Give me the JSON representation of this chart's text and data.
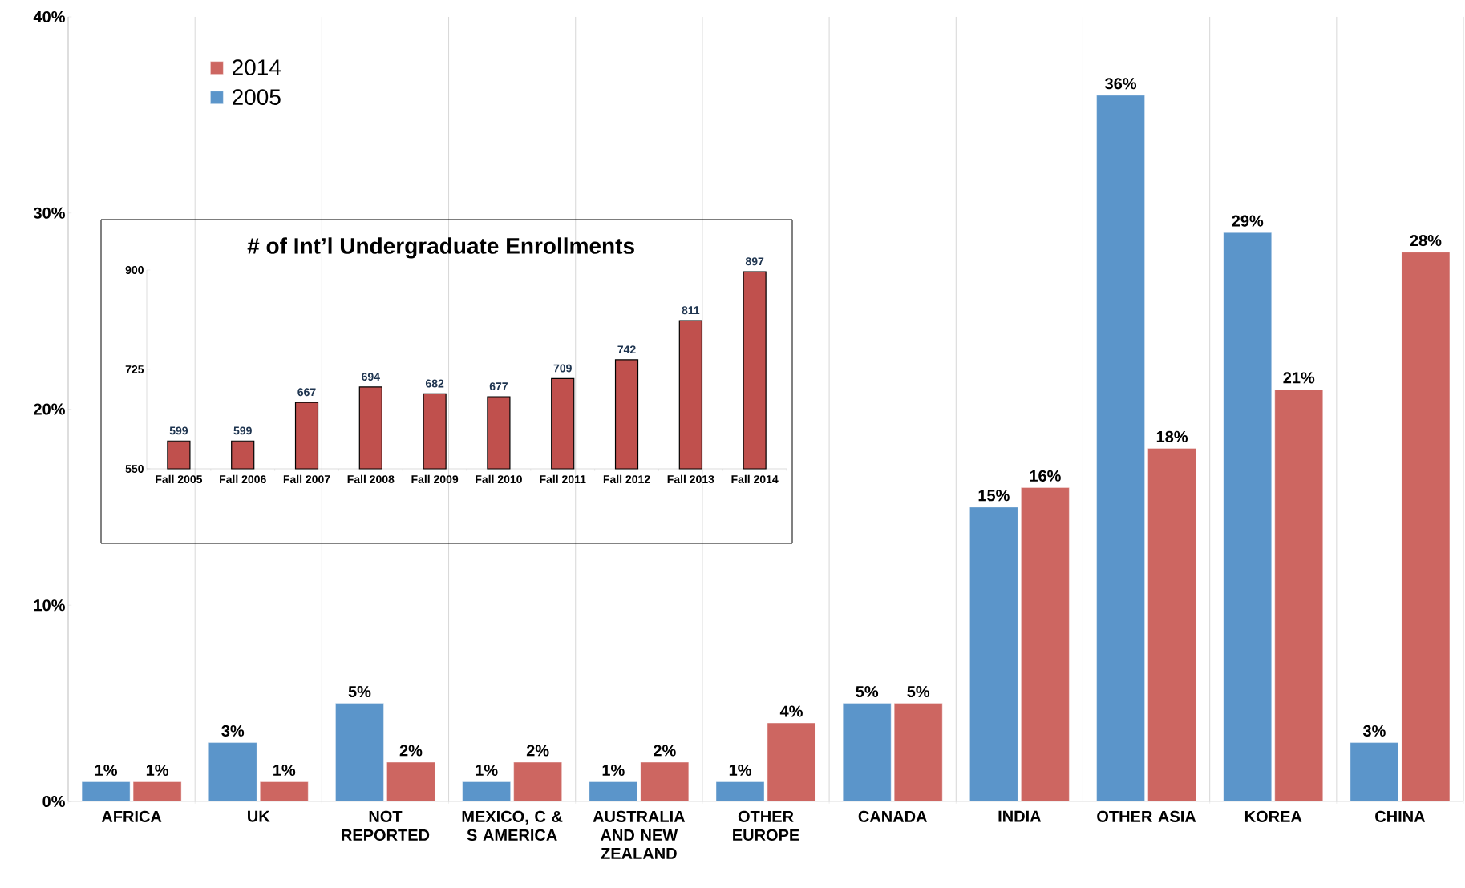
{
  "chart_data": [
    {
      "type": "bar",
      "categories": [
        "AFRICA",
        "UK",
        "NOT REPORTED",
        "MEXICO, C & S AMERICA",
        "AUSTRALIA AND NEW ZEALAND",
        "OTHER EUROPE",
        "CANADA",
        "INDIA",
        "OTHER ASIA",
        "KOREA",
        "CHINA"
      ],
      "series": [
        {
          "name": "2005",
          "color": "#5b95ca",
          "values": [
            1,
            3,
            5,
            1,
            1,
            1,
            5,
            15,
            36,
            29,
            3
          ],
          "value_labels": [
            "1%",
            "3%",
            "5%",
            "1%",
            "1%",
            "1%",
            "5%",
            "15%",
            "36%",
            "29%",
            "3%"
          ]
        },
        {
          "name": "2014",
          "color": "#cd6661",
          "values": [
            1,
            1,
            2,
            2,
            2,
            4,
            5,
            16,
            18,
            21,
            28
          ],
          "value_labels": [
            "1%",
            "1%",
            "2%",
            "2%",
            "2%",
            "4%",
            "5%",
            "16%",
            "18%",
            "21%",
            "28%"
          ]
        }
      ],
      "ylim": [
        0,
        40
      ],
      "yticks": [
        {
          "value": 0,
          "label": "0%"
        },
        {
          "value": 10,
          "label": "10%"
        },
        {
          "value": 20,
          "label": "20%"
        },
        {
          "value": 30,
          "label": "30%"
        },
        {
          "value": 40,
          "label": "40%"
        }
      ],
      "grid": "x",
      "legend": "top left"
    },
    {
      "type": "bar",
      "title": "# of Int’l Undergraduate Enrollments",
      "categories": [
        "Fall 2005",
        "Fall 2006",
        "Fall 2007",
        "Fall 2008",
        "Fall 2009",
        "Fall 2010",
        "Fall 2011",
        "Fall 2012",
        "Fall 2013",
        "Fall 2014"
      ],
      "values": [
        599,
        599,
        667,
        694,
        682,
        677,
        709,
        742,
        811,
        897
      ],
      "color": "#c0504d",
      "data_labels": true,
      "ylim": [
        550,
        900
      ],
      "yticks": [
        550,
        725,
        900
      ]
    }
  ]
}
